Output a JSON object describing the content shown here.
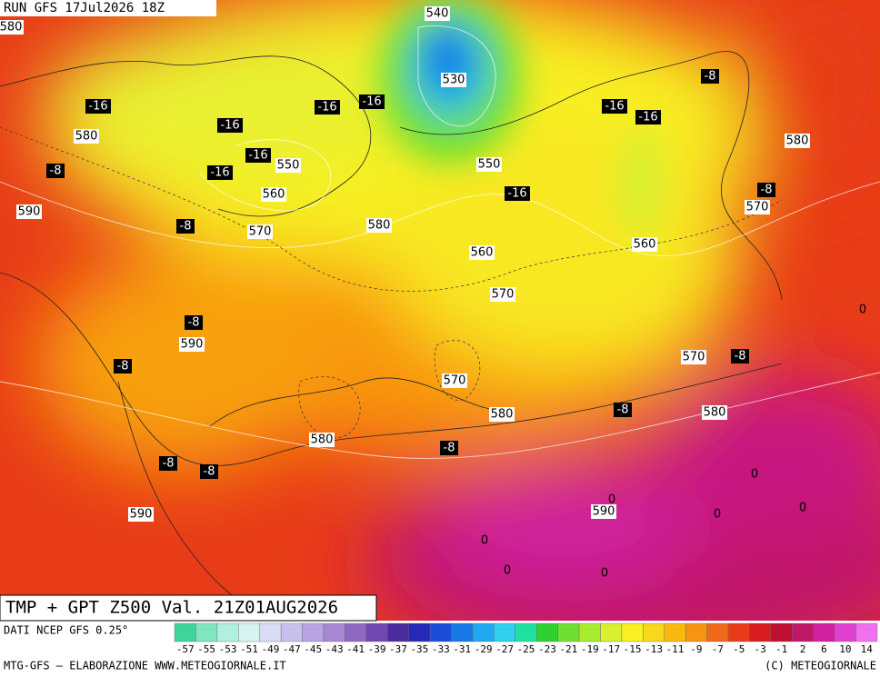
{
  "header": {
    "run": "RUN GFS 17Jul2026 18Z"
  },
  "title": "TMP + GPT Z500 Val. 21Z01AUG2026",
  "source": "DATI NCEP GFS 0.25°",
  "credit_left": "MTG-GFS — ELABORAZIONE WWW.METEOGIORNALE.IT",
  "credit_right": "(C) METEOGIORNALE",
  "colorbar": {
    "labels": [
      -57,
      -55,
      -53,
      -51,
      -49,
      -47,
      -45,
      -43,
      -41,
      -39,
      -37,
      -35,
      -33,
      -31,
      -29,
      -27,
      -25,
      -23,
      -21,
      -19,
      -17,
      -15,
      -13,
      -11,
      -9,
      -7,
      -5,
      -3,
      -1,
      2,
      6,
      10,
      14
    ],
    "colors": [
      "#3fd49a",
      "#7fe6c0",
      "#b0f0dc",
      "#d8f4f0",
      "#d8dcf4",
      "#c8c0ec",
      "#b8a4e0",
      "#a888d4",
      "#9068c4",
      "#7048b0",
      "#4c2c9c",
      "#2828b8",
      "#1c4cd8",
      "#1878e8",
      "#20a8f0",
      "#30d0f0",
      "#20e0a0",
      "#30d030",
      "#70e030",
      "#a8ec30",
      "#d8f030",
      "#f8f020",
      "#f8d818",
      "#f8b810",
      "#f89410",
      "#f06818",
      "#e83c18",
      "#d81c20",
      "#c01030",
      "#c01868",
      "#d020a0",
      "#e040d0",
      "#f070f0"
    ]
  },
  "map_labels": [
    580,
    540,
    530,
    -16,
    -16,
    -16,
    -16,
    -16,
    -16,
    -16,
    -16,
    -16,
    -8,
    580,
    -8,
    550,
    550,
    580,
    560,
    -8,
    570,
    590,
    -8,
    570,
    580,
    560,
    560,
    570,
    -8,
    590,
    0,
    570,
    -8,
    -8,
    570,
    580,
    -8,
    580,
    580,
    -8,
    -8,
    -8,
    0,
    0,
    590,
    0,
    590,
    0,
    0,
    0,
    0
  ]
}
